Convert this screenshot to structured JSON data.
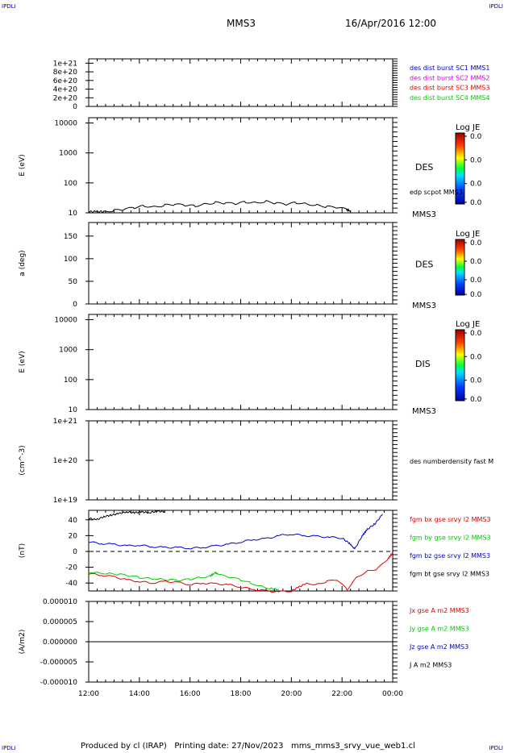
{
  "corner_labels": {
    "tl": "IPDLI",
    "tr": "IPDLI",
    "bl": "IPDLI",
    "br": "IPDLI"
  },
  "header": {
    "spacecraft": "MMS3",
    "date_time": "16/Apr/2016 12:00"
  },
  "footer": {
    "text": "Produced by cl (IRAP)   Printing date: 27/Nov/2023   mms_mms3_srvy_vue_web1.cl"
  },
  "colors": {
    "blue": "#0000c8",
    "magenta": "#d000d0",
    "red": "#e00000",
    "green": "#00c800",
    "black": "#000000"
  },
  "chart_data": [
    {
      "type": "line",
      "panel": "dist_burst",
      "ylabel": "",
      "yticks": [
        "1e+21",
        "8e+20",
        "6e+20",
        "4e+20",
        "2e+20",
        "0"
      ],
      "ylim": [
        0,
        1.1e+21
      ],
      "dashed_zero": true,
      "legend": [
        {
          "label": "des dist burst SC1 MMS1",
          "color": "#0000c8"
        },
        {
          "label": "des dist burst SC2 MMS2",
          "color": "#d000d0"
        },
        {
          "label": "des dist burst SC3 MMS3",
          "color": "#e00000"
        },
        {
          "label": "des dist burst SC4 MMS4",
          "color": "#00c800"
        }
      ],
      "series": []
    },
    {
      "type": "line",
      "panel": "des_energy",
      "ylabel": "E (eV)",
      "yscale": "log",
      "yticks": [
        "10000",
        "1000",
        "100",
        "10"
      ],
      "ylim": [
        10,
        15000
      ],
      "right_label": "DES",
      "right_sub": "MMS3",
      "overlay_label": "edp scpot MMS3",
      "colorbar": {
        "title": "Log JE",
        "ticks": [
          "0.0",
          "0.0",
          "0.0",
          "0.0"
        ]
      },
      "series": [
        {
          "name": "edp scpot MMS3",
          "x_hours": [
            12.0,
            12.3,
            12.6,
            13.0,
            13.4,
            13.8,
            14.2,
            14.6,
            15.0,
            15.4,
            15.8,
            16.2,
            16.6,
            17.0,
            17.4,
            17.8,
            18.2,
            18.6,
            19.0,
            19.4,
            19.8,
            20.2,
            20.6,
            21.0,
            21.4,
            21.8,
            22.2,
            22.35
          ],
          "values": [
            11,
            11,
            11,
            12,
            13,
            15,
            17,
            16,
            18,
            19,
            18,
            17,
            20,
            22,
            21,
            20,
            23,
            22,
            24,
            21,
            19,
            22,
            20,
            18,
            16,
            15,
            13,
            11
          ]
        }
      ]
    },
    {
      "type": "heatmap",
      "panel": "des_pitch",
      "ylabel": "a (deg)",
      "yticks": [
        "150",
        "100",
        "50",
        "0"
      ],
      "ylim": [
        0,
        180
      ],
      "right_label": "DES",
      "right_sub": "MMS3",
      "colorbar": {
        "title": "Log JE",
        "ticks": [
          "0.0",
          "0.0",
          "0.0",
          "0.0"
        ]
      }
    },
    {
      "type": "heatmap",
      "panel": "dis_energy",
      "ylabel": "E (eV)",
      "yscale": "log",
      "yticks": [
        "10000",
        "1000",
        "100",
        "10"
      ],
      "ylim": [
        10,
        15000
      ],
      "right_label": "DIS",
      "right_sub": "MMS3",
      "colorbar": {
        "title": "Log JE",
        "ticks": [
          "0.0",
          "0.0",
          "0.0",
          "0.0"
        ]
      }
    },
    {
      "type": "line",
      "panel": "density",
      "ylabel": "(cm^-3)",
      "yscale": "log",
      "yticks": [
        "1e+21",
        "1e+20",
        "1e+19"
      ],
      "ylim": [
        1e+19,
        1e+21
      ],
      "legend": [
        {
          "label": "des numberdensity fast M",
          "color": "#000000"
        }
      ],
      "series": []
    },
    {
      "type": "line",
      "panel": "fgm",
      "ylabel": "(nT)",
      "yticks": [
        "40",
        "20",
        "0",
        "-20",
        "-40"
      ],
      "ylim": [
        -50,
        52
      ],
      "dashed_zero": true,
      "legend": [
        {
          "label": "fgm bx gse srvy l2 MMS3",
          "color": "#e00000"
        },
        {
          "label": "fgm by gse srvy l2 MMS3",
          "color": "#00c800"
        },
        {
          "label": "fgm bz gse srvy l2 MMS3",
          "color": "#0000c8"
        },
        {
          "label": "fgm bt gse srvy l2 MMS3",
          "color": "#000000"
        }
      ],
      "series": [
        {
          "name": "fgm bt gse srvy l2 MMS3",
          "color": "#000000",
          "x_hours": [
            12.0,
            12.3,
            12.6,
            12.9,
            13.2,
            13.5,
            13.8,
            14.1,
            14.4,
            14.7,
            15.0
          ],
          "values": [
            42,
            40,
            44,
            46,
            48,
            50,
            49,
            50,
            49,
            51,
            50
          ]
        },
        {
          "name": "fgm bz gse srvy l2 MMS3",
          "color": "#0000c8",
          "x_hours": [
            12.0,
            12.5,
            13.0,
            13.5,
            14.0,
            14.5,
            15.0,
            15.5,
            16.0,
            16.5,
            17.0,
            17.5,
            18.0,
            18.5,
            19.0,
            19.5,
            20.0,
            20.5,
            21.0,
            21.5,
            22.0,
            22.3,
            22.5,
            22.8,
            23.0,
            23.3,
            23.6
          ],
          "values": [
            12,
            10,
            9,
            7,
            8,
            6,
            5,
            5,
            4,
            5,
            7,
            9,
            12,
            15,
            16,
            20,
            22,
            20,
            19,
            18,
            17,
            10,
            3,
            20,
            28,
            35,
            47
          ]
        },
        {
          "name": "fgm by gse srvy l2 MMS3",
          "color": "#00c800",
          "x_hours": [
            12.0,
            12.4,
            12.8,
            13.2,
            13.6,
            14.0,
            14.4,
            14.8,
            15.2,
            15.6,
            16.0,
            16.4,
            16.8,
            17.0,
            17.2,
            17.6,
            18.0,
            18.4,
            18.8,
            19.2,
            19.5
          ],
          "values": [
            -26,
            -27,
            -28,
            -29,
            -31,
            -33,
            -34,
            -35,
            -36,
            -37,
            -35,
            -33,
            -31,
            -27,
            -30,
            -33,
            -36,
            -40,
            -44,
            -47,
            -48
          ]
        },
        {
          "name": "fgm bx gse srvy l2 MMS3",
          "color": "#e00000",
          "x_hours": [
            12.0,
            12.5,
            13.0,
            13.5,
            14.0,
            14.5,
            15.0,
            15.5,
            16.0,
            16.5,
            17.0,
            17.5,
            18.0,
            18.5,
            19.0,
            19.5,
            20.0,
            20.3,
            20.6,
            21.0,
            21.4,
            21.8,
            22.2,
            22.6,
            23.0,
            23.4,
            23.8,
            24.0
          ],
          "values": [
            -28,
            -30,
            -32,
            -36,
            -38,
            -40,
            -38,
            -39,
            -42,
            -40,
            -41,
            -42,
            -45,
            -48,
            -50,
            -51,
            -50,
            -45,
            -40,
            -42,
            -38,
            -36,
            -48,
            -32,
            -25,
            -22,
            -10,
            -2
          ]
        }
      ]
    },
    {
      "type": "line",
      "panel": "current",
      "ylabel": "(A/m2)",
      "yticks": [
        "0.000010",
        "0.000005",
        "0.000000",
        "-0.000005",
        "-0.000010"
      ],
      "ylim": [
        -1e-05,
        1e-05
      ],
      "xticks": [
        "12:00",
        "14:00",
        "16:00",
        "18:00",
        "20:00",
        "22:00",
        "00:00"
      ],
      "legend": [
        {
          "label": "Jx gse A m2 MMS3",
          "color": "#e00000"
        },
        {
          "label": "Jy gse A m2 MMS3",
          "color": "#00c800"
        },
        {
          "label": "Jz gse A m2 MMS3",
          "color": "#0000c8"
        },
        {
          "label": "J A m2 MMS3",
          "color": "#000000"
        }
      ],
      "series": [
        {
          "name": "J A m2 MMS3",
          "color": "#000000",
          "x_hours": [
            12.0,
            24.0
          ],
          "values": [
            0,
            0
          ]
        }
      ]
    }
  ]
}
